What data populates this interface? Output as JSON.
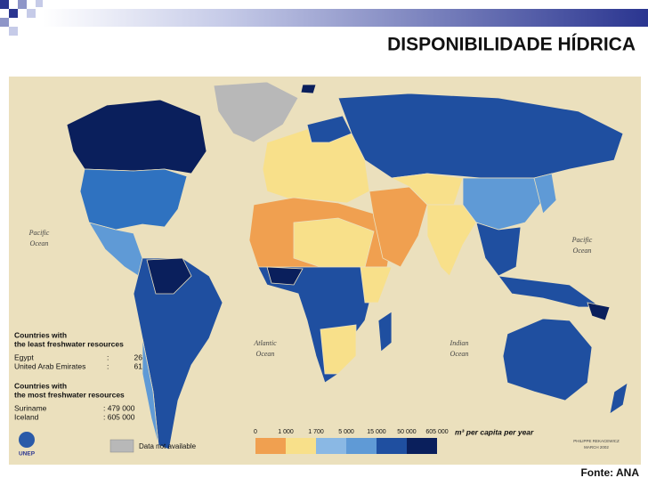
{
  "header": {
    "title": "DISPONIBILIDADE HÍDRICA"
  },
  "map": {
    "oceans": [
      {
        "name": "Pacific",
        "sub": "Ocean"
      },
      {
        "name": "Pacific",
        "sub": "Ocean"
      },
      {
        "name": "Atlantic",
        "sub": "Ocean"
      },
      {
        "name": "Indian",
        "sub": "Ocean"
      }
    ],
    "least": {
      "heading": [
        "Countries with",
        "the least freshwater resources"
      ],
      "rows": [
        [
          "Egypt",
          ":",
          "26"
        ],
        [
          "United Arab Emirates",
          ":",
          "61"
        ]
      ]
    },
    "most": {
      "heading": [
        "Countries with",
        "the most freshwater resources"
      ],
      "rows": [
        [
          "Suriname",
          ": 479 000"
        ],
        [
          "Iceland",
          ": 605 000"
        ]
      ]
    },
    "legend": {
      "ticks": [
        "0",
        "1 000",
        "1 700",
        "5 000",
        "15 000",
        "50 000",
        "605 000"
      ],
      "unit": "m³ per capita per year",
      "na": "Data not available"
    },
    "logo": "UNEP",
    "credit": [
      "PHILIPPE REKACEWICZ",
      "MARCH 2002"
    ]
  },
  "footer": {
    "source": "Fonte: ANA"
  }
}
